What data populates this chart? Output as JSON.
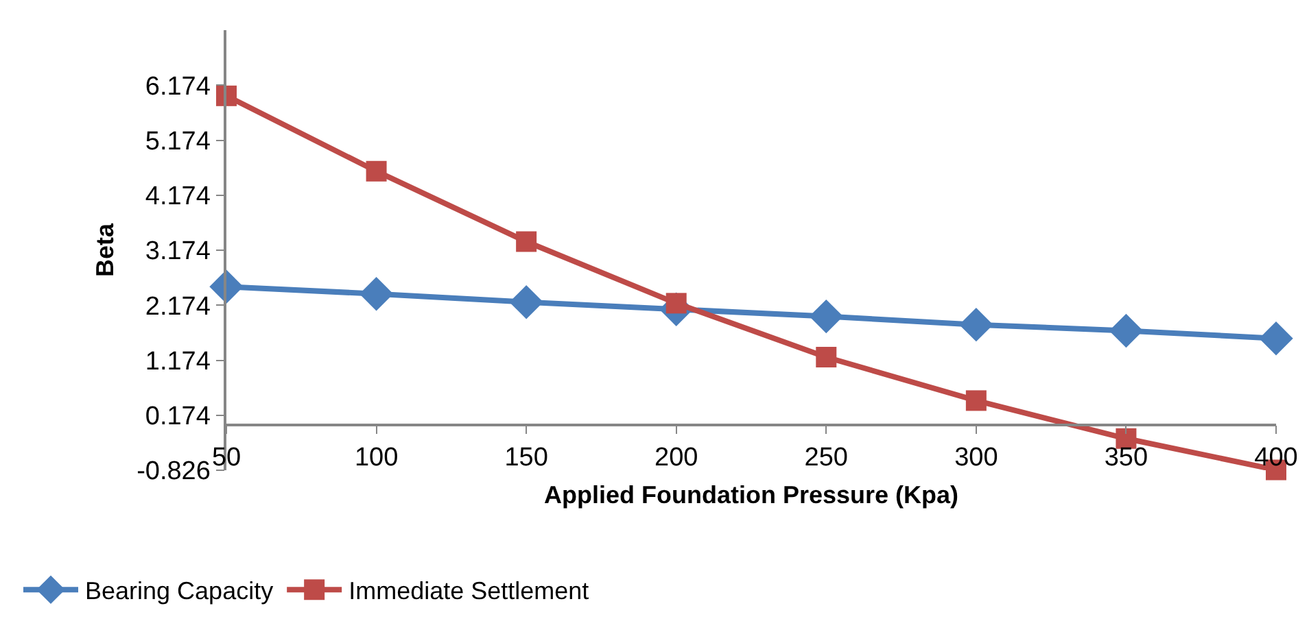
{
  "chart_data": {
    "type": "line",
    "xlabel": "Applied Foundation Pressure (Kpa)",
    "ylabel": "Beta",
    "x": [
      50,
      100,
      150,
      200,
      250,
      300,
      350,
      400
    ],
    "series": [
      {
        "name": "Bearing Capacity",
        "color": "#4a7ebb",
        "marker": "diamond",
        "values": [
          2.51,
          2.38,
          2.23,
          2.1,
          1.97,
          1.82,
          1.71,
          1.57
        ]
      },
      {
        "name": "Immediate Settlement",
        "color": "#be4b48",
        "marker": "square",
        "values": [
          5.98,
          4.61,
          3.33,
          2.21,
          1.23,
          0.44,
          -0.25,
          -0.82
        ]
      }
    ],
    "xlim": [
      50,
      400
    ],
    "xticks": [
      50,
      100,
      150,
      200,
      250,
      300,
      350,
      400
    ],
    "ylim": [
      -0.826,
      7.174
    ],
    "yticks": [
      -0.826,
      0.174,
      1.174,
      2.174,
      3.174,
      4.174,
      5.174,
      6.174
    ],
    "grid": false,
    "legend": "bottom left",
    "line_style": "solid"
  }
}
